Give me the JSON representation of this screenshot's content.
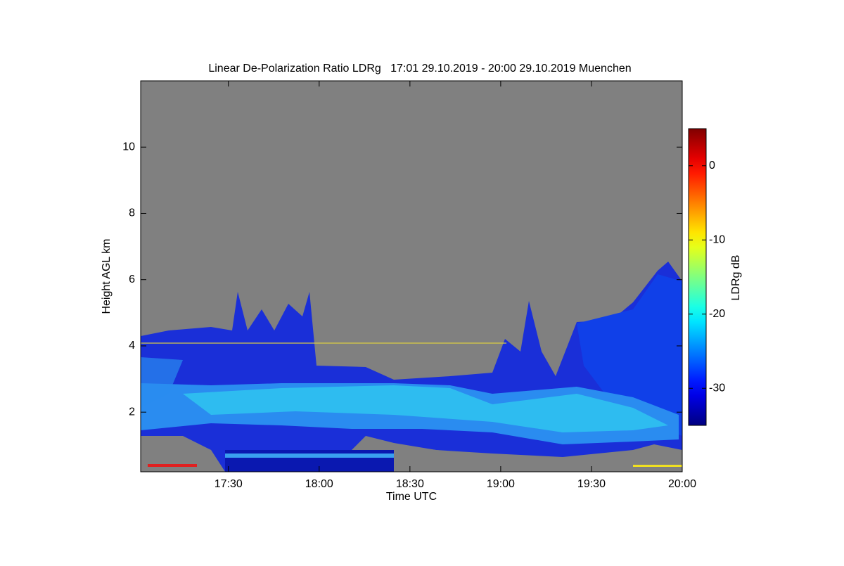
{
  "chart_data": {
    "type": "heatmap",
    "title": "Linear De-Polarization Ratio LDRg   17:01 29.10.2019 - 20:00 29.10.2019 Muenchen",
    "xlabel": "Time UTC",
    "ylabel": "Height AGL km",
    "colorbar_label": "LDRg dB",
    "xlim": [
      17.0167,
      20
    ],
    "xticks": [
      {
        "value": 17.5,
        "label": "17:30"
      },
      {
        "value": 18,
        "label": "18:00"
      },
      {
        "value": 18.5,
        "label": "18:30"
      },
      {
        "value": 19,
        "label": "19:00"
      },
      {
        "value": 19.5,
        "label": "19:30"
      },
      {
        "value": 20,
        "label": "20:00"
      }
    ],
    "ylim": [
      0.2,
      12
    ],
    "yticks": [
      2,
      4,
      6,
      8,
      10
    ],
    "clim": [
      -35,
      5
    ],
    "cticks": [
      0,
      -10,
      -20,
      -30
    ],
    "colormap": "jet",
    "background_color": "#808080"
  }
}
